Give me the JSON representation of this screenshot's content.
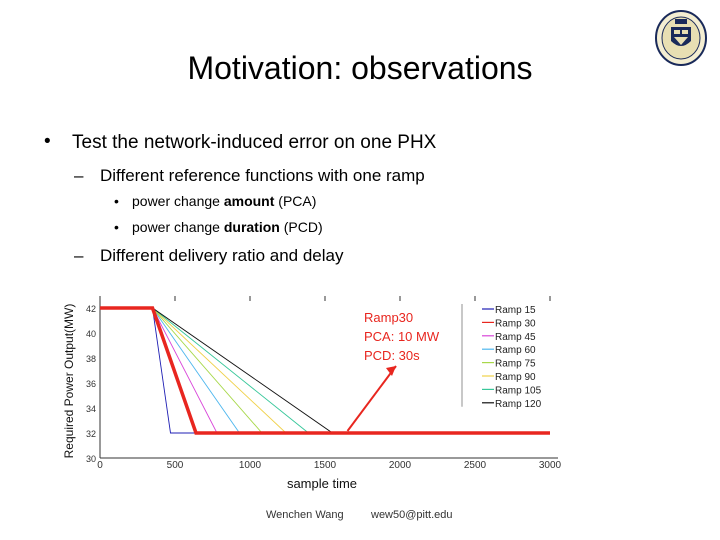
{
  "slide": {
    "title": "Motivation: observations",
    "bullet1": "Test the network-induced error on one PHX",
    "sub1": "Different reference functions with one ramp",
    "sub1_items": [
      {
        "pre": "power change ",
        "bold": "amount",
        "post": " (PCA)"
      },
      {
        "pre": "power change ",
        "bold": "duration",
        "post": " (PCD)"
      }
    ],
    "sub2": "Different delivery ratio and delay",
    "footer_author": "Wenchen Wang",
    "footer_email": "wew50@pitt.edu",
    "bullet_glyph": "•",
    "dash_glyph": "–"
  },
  "chart_data": {
    "type": "line",
    "xlabel": "sample time",
    "ylabel": "Required Power Output(MW)",
    "xlim": [
      0,
      3000
    ],
    "ylim": [
      30,
      42
    ],
    "xticks": [
      "0",
      "500",
      "1000",
      "1500",
      "2000",
      "2500",
      "3000"
    ],
    "yticks": [
      "42",
      "40",
      "38",
      "36",
      "34",
      "32",
      "30"
    ],
    "ytick_values": [
      42,
      40,
      38,
      36,
      34,
      32,
      30
    ],
    "xtick_values": [
      0,
      500,
      1000,
      1500,
      2000,
      2500,
      3000
    ],
    "ramp_start": 350,
    "start_value": 42,
    "end_value": 32,
    "series": [
      {
        "name": "Ramp 15",
        "color": "#1f1fb4",
        "end_x": 470
      },
      {
        "name": "Ramp 30",
        "color": "#e8261f",
        "end_x": 640
      },
      {
        "name": "Ramp 45",
        "color": "#d946d9",
        "end_x": 780
      },
      {
        "name": "Ramp 60",
        "color": "#4fb7ee",
        "end_x": 930
      },
      {
        "name": "Ramp 75",
        "color": "#a8d84a",
        "end_x": 1080
      },
      {
        "name": "Ramp 90",
        "color": "#f0d14a",
        "end_x": 1240
      },
      {
        "name": "Ramp 105",
        "color": "#38c79a",
        "end_x": 1390
      },
      {
        "name": "Ramp 120",
        "color": "#111111",
        "end_x": 1550
      }
    ],
    "highlight": {
      "series": "Ramp 30",
      "color": "#e8261f"
    },
    "annotation": {
      "lines": [
        "Ramp30",
        "PCA: 10 MW",
        "PCD: 30s"
      ],
      "color": "#e8261f",
      "target_x": 1650,
      "target_y": 32
    }
  }
}
